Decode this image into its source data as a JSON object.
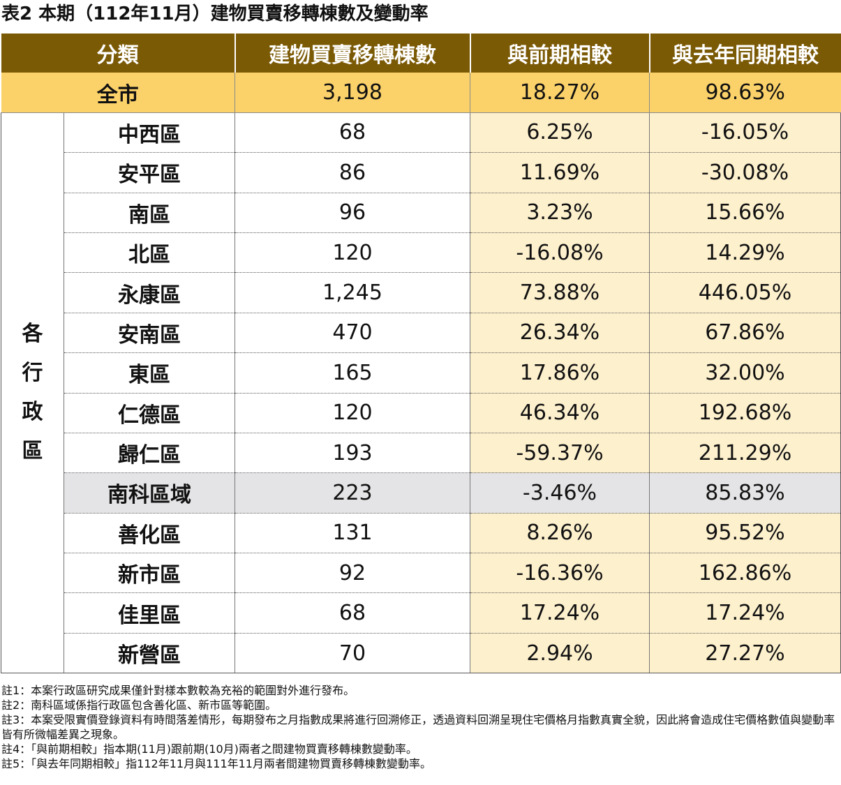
{
  "title": "表2 本期（112年11月）建物買賣移轉棟數及變動率",
  "headers": [
    "分類",
    "建物買賣移轉棟數",
    "與前期相較",
    "與去年同期相較"
  ],
  "city_row": {
    "name": "全市",
    "count": "3,198",
    "qoq": "18.27%",
    "yoy": "98.63%"
  },
  "side_label": "各行政區",
  "districts": [
    {
      "name": "中西區",
      "count": "68",
      "qoq": "6.25%",
      "yoy": "-16.05%"
    },
    {
      "name": "安平區",
      "count": "86",
      "qoq": "11.69%",
      "yoy": "-30.08%"
    },
    {
      "name": "南區",
      "count": "96",
      "qoq": "3.23%",
      "yoy": "15.66%"
    },
    {
      "name": "北區",
      "count": "120",
      "qoq": "-16.08%",
      "yoy": "14.29%"
    },
    {
      "name": "永康區",
      "count": "1,245",
      "qoq": "73.88%",
      "yoy": "446.05%"
    },
    {
      "name": "安南區",
      "count": "470",
      "qoq": "26.34%",
      "yoy": "67.86%"
    },
    {
      "name": "東區",
      "count": "165",
      "qoq": "17.86%",
      "yoy": "32.00%"
    },
    {
      "name": "仁德區",
      "count": "120",
      "qoq": "46.34%",
      "yoy": "192.68%"
    },
    {
      "name": "歸仁區",
      "count": "193",
      "qoq": "-59.37%",
      "yoy": "211.29%"
    },
    {
      "name": "南科區域",
      "count": "223",
      "qoq": "-3.46%",
      "yoy": "85.83%"
    },
    {
      "name": "善化區",
      "count": "131",
      "qoq": "8.26%",
      "yoy": "95.52%"
    },
    {
      "name": "新市區",
      "count": "92",
      "qoq": "-16.36%",
      "yoy": "162.86%"
    },
    {
      "name": "佳里區",
      "count": "68",
      "qoq": "17.24%",
      "yoy": "17.24%"
    },
    {
      "name": "新營區",
      "count": "70",
      "qoq": "2.94%",
      "yoy": "27.27%"
    }
  ],
  "notes": [
    "註1：本案行政區研究成果僅針對樣本數較為充裕的範圍對外進行發布。",
    "註2：南科區域係指行政區包含善化區、新市區等範圍。",
    "註3：本案受限實價登錄資料有時間落差情形，每期發布之月指數成果將進行回溯修正，透過資料回溯呈現住宅價格月指數真實全貌，因此將會造成住宅價格數值與變動率皆有所微幅差異之現象。",
    "註4：「與前期相較」指本期(11月)跟前期(10月)兩者之間建物買賣移轉棟數變動率。",
    "註5：「與去年同期相較」指112年11月與111年11月兩者間建物買賣移轉棟數變動率。"
  ]
}
